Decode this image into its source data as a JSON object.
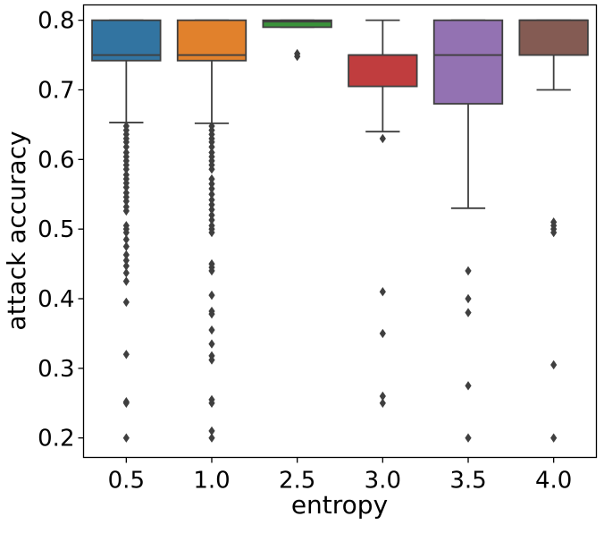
{
  "chart_data": {
    "type": "box",
    "xlabel": "entropy",
    "ylabel": "attack accuracy",
    "categories": [
      "0.5",
      "1.0",
      "2.5",
      "3.0",
      "3.5",
      "4.0"
    ],
    "yticks": [
      "0.2",
      "0.3",
      "0.4",
      "0.5",
      "0.6",
      "0.7",
      "0.8"
    ],
    "ylim": [
      0.172,
      0.822
    ],
    "grid": false,
    "legend": "none",
    "boxes": [
      {
        "category": "0.5",
        "color": "#3274a1",
        "q1": 0.742,
        "median": 0.75,
        "q3": 0.8,
        "whisker_low": 0.653,
        "whisker_high": 0.8,
        "outliers": [
          0.648,
          0.642,
          0.636,
          0.63,
          0.625,
          0.618,
          0.61,
          0.604,
          0.598,
          0.592,
          0.586,
          0.578,
          0.572,
          0.566,
          0.56,
          0.552,
          0.546,
          0.54,
          0.532,
          0.526,
          0.505,
          0.5,
          0.495,
          0.485,
          0.475,
          0.463,
          0.455,
          0.447,
          0.437,
          0.425,
          0.395,
          0.32,
          0.252,
          0.25,
          0.2
        ]
      },
      {
        "category": "1.0",
        "color": "#e1812c",
        "q1": 0.742,
        "median": 0.75,
        "q3": 0.8,
        "whisker_low": 0.652,
        "whisker_high": 0.8,
        "outliers": [
          0.648,
          0.642,
          0.636,
          0.63,
          0.625,
          0.618,
          0.61,
          0.604,
          0.598,
          0.592,
          0.586,
          0.572,
          0.565,
          0.558,
          0.55,
          0.542,
          0.535,
          0.528,
          0.52,
          0.513,
          0.505,
          0.5,
          0.495,
          0.45,
          0.445,
          0.44,
          0.405,
          0.382,
          0.378,
          0.355,
          0.335,
          0.318,
          0.312,
          0.255,
          0.25,
          0.21,
          0.2
        ]
      },
      {
        "category": "2.5",
        "color": "#3a923a",
        "q1": 0.79,
        "median": 0.798,
        "q3": 0.8,
        "whisker_low": 0.79,
        "whisker_high": 0.8,
        "outliers": [
          0.752,
          0.748
        ]
      },
      {
        "category": "3.0",
        "color": "#c03d3e",
        "q1": 0.705,
        "median": 0.75,
        "q3": 0.75,
        "whisker_low": 0.64,
        "whisker_high": 0.8,
        "outliers": [
          0.63,
          0.41,
          0.35,
          0.26,
          0.25
        ]
      },
      {
        "category": "3.5",
        "color": "#9372b2",
        "q1": 0.68,
        "median": 0.75,
        "q3": 0.8,
        "whisker_low": 0.53,
        "whisker_high": 0.8,
        "outliers": [
          0.44,
          0.4,
          0.38,
          0.275,
          0.2
        ]
      },
      {
        "category": "4.0",
        "color": "#845b53",
        "q1": 0.75,
        "median": 0.8,
        "q3": 0.8,
        "whisker_low": 0.7,
        "whisker_high": 0.8,
        "outliers": [
          0.51,
          0.505,
          0.5,
          0.495,
          0.305,
          0.2
        ]
      }
    ]
  }
}
